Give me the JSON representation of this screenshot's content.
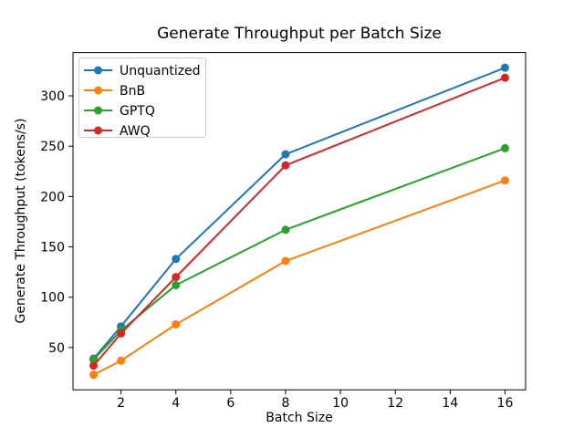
{
  "figure": {
    "background": "#ffffff",
    "spine_color": "#000000",
    "legend_border_color": "#cccccc",
    "legend_background": "#ffffff"
  },
  "chart_data": {
    "type": "line",
    "title": "Generate Throughput per Batch Size",
    "xlabel": "Batch Size",
    "ylabel": "Generate Throughput (tokens/s)",
    "x": [
      1,
      2,
      4,
      8,
      16
    ],
    "series": [
      {
        "name": "Unquantized",
        "color": "#1f77b4",
        "values": [
          39,
          71,
          138,
          242,
          328
        ]
      },
      {
        "name": "BnB",
        "color": "#ff7f0e",
        "values": [
          23,
          37,
          73,
          136,
          216
        ]
      },
      {
        "name": "GPTQ",
        "color": "#2ca02c",
        "values": [
          38,
          67,
          112,
          167,
          248
        ]
      },
      {
        "name": "AWQ",
        "color": "#d62728",
        "values": [
          32,
          64,
          120,
          231,
          318
        ]
      }
    ],
    "xticks": [
      2,
      4,
      6,
      8,
      10,
      12,
      14,
      16
    ],
    "yticks": [
      50,
      100,
      150,
      200,
      250,
      300
    ],
    "xlim": [
      0.25,
      16.75
    ],
    "ylim": [
      8,
      343
    ],
    "grid": false,
    "legend_position": "upper left",
    "marker": "o"
  }
}
